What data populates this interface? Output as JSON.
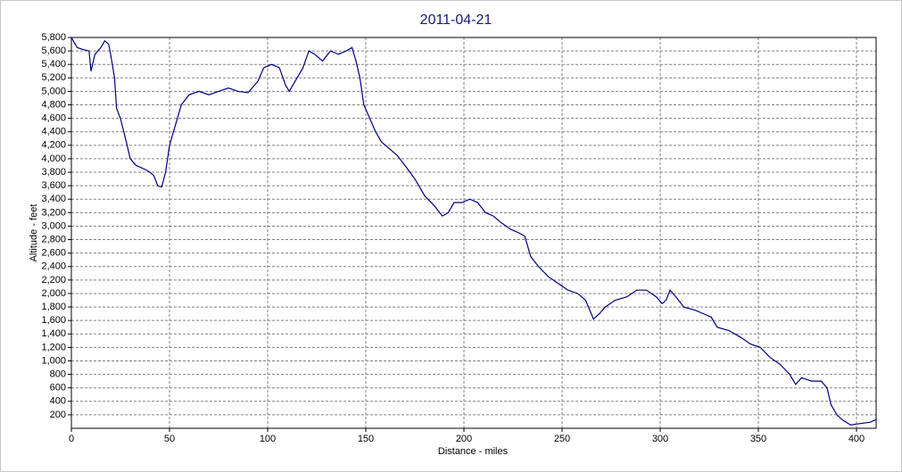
{
  "chart_data": {
    "type": "line",
    "title": "2011-04-21",
    "x_label": "Distance - miles",
    "y_label": "Altitude - feet",
    "x": [
      0,
      3,
      6,
      9,
      10,
      12,
      15,
      17,
      19,
      20,
      22,
      23,
      25,
      28,
      30,
      33,
      37,
      40,
      42,
      44,
      46,
      48,
      50,
      53,
      56,
      60,
      65,
      70,
      75,
      80,
      85,
      90,
      95,
      98,
      102,
      106,
      109,
      111,
      114,
      118,
      121,
      124,
      128,
      132,
      136,
      140,
      143,
      145,
      147,
      149,
      152,
      155,
      158,
      162,
      166,
      170,
      175,
      180,
      185,
      189,
      192,
      195,
      199,
      203,
      207,
      211,
      215,
      219,
      224,
      228,
      231,
      234,
      238,
      243,
      248,
      253,
      258,
      262,
      266,
      269,
      272,
      277,
      283,
      288,
      293,
      298,
      301,
      303,
      305,
      308,
      312,
      318,
      322,
      326,
      329,
      335,
      341,
      346,
      351,
      356,
      361,
      366,
      369,
      372,
      377,
      382,
      385,
      387,
      390,
      393,
      397,
      402,
      407,
      410
    ],
    "values": [
      5800,
      5650,
      5620,
      5600,
      5300,
      5550,
      5650,
      5750,
      5700,
      5550,
      5200,
      4750,
      4600,
      4250,
      4000,
      3900,
      3850,
      3800,
      3750,
      3600,
      3580,
      3800,
      4200,
      4500,
      4800,
      4950,
      5000,
      4950,
      5000,
      5050,
      5000,
      4980,
      5150,
      5350,
      5400,
      5350,
      5100,
      5000,
      5150,
      5350,
      5600,
      5550,
      5450,
      5600,
      5550,
      5600,
      5650,
      5450,
      5200,
      4800,
      4600,
      4400,
      4250,
      4150,
      4050,
      3900,
      3700,
      3450,
      3300,
      3150,
      3200,
      3350,
      3350,
      3400,
      3350,
      3200,
      3150,
      3050,
      2950,
      2900,
      2850,
      2550,
      2400,
      2250,
      2150,
      2050,
      2000,
      1900,
      1620,
      1700,
      1800,
      1900,
      1950,
      2050,
      2050,
      1950,
      1850,
      1900,
      2050,
      1950,
      1800,
      1750,
      1700,
      1650,
      1500,
      1450,
      1350,
      1250,
      1200,
      1050,
      950,
      800,
      650,
      750,
      700,
      700,
      600,
      350,
      200,
      120,
      50,
      70,
      90,
      130
    ],
    "color": "#00007f",
    "xlim": [
      0,
      410
    ],
    "xticks": [
      0,
      50,
      100,
      150,
      200,
      250,
      300,
      350,
      400
    ],
    "ylim": [
      0,
      5800
    ],
    "yticks": [
      200,
      400,
      600,
      800,
      {
        "value": 1000,
        "label": "1,000"
      },
      {
        "value": 1200,
        "label": "1,200"
      },
      {
        "value": 1400,
        "label": "1,400"
      },
      {
        "value": 1600,
        "label": "1,600"
      },
      {
        "value": 1800,
        "label": "1,800"
      },
      {
        "value": 2000,
        "label": "2,000"
      },
      {
        "value": 2200,
        "label": "2,200"
      },
      {
        "value": 2400,
        "label": "2,400"
      },
      {
        "value": 2600,
        "label": "2,600"
      },
      {
        "value": 2800,
        "label": "2,800"
      },
      {
        "value": 3000,
        "label": "3,000"
      },
      {
        "value": 3200,
        "label": "3,200"
      },
      {
        "value": 3400,
        "label": "3,400"
      },
      {
        "value": 3600,
        "label": "3,600"
      },
      {
        "value": 3800,
        "label": "3,800"
      },
      {
        "value": 4000,
        "label": "4,000"
      },
      {
        "value": 4200,
        "label": "4,200"
      },
      {
        "value": 4400,
        "label": "4,400"
      },
      {
        "value": 4600,
        "label": "4,600"
      },
      {
        "value": 4800,
        "label": "4,800"
      },
      {
        "value": 5000,
        "label": "5,000"
      },
      {
        "value": 5200,
        "label": "5,200"
      },
      {
        "value": 5400,
        "label": "5,400"
      },
      {
        "value": 5600,
        "label": "5,600"
      },
      {
        "value": 5800,
        "label": "5,800"
      }
    ],
    "grid": true
  }
}
